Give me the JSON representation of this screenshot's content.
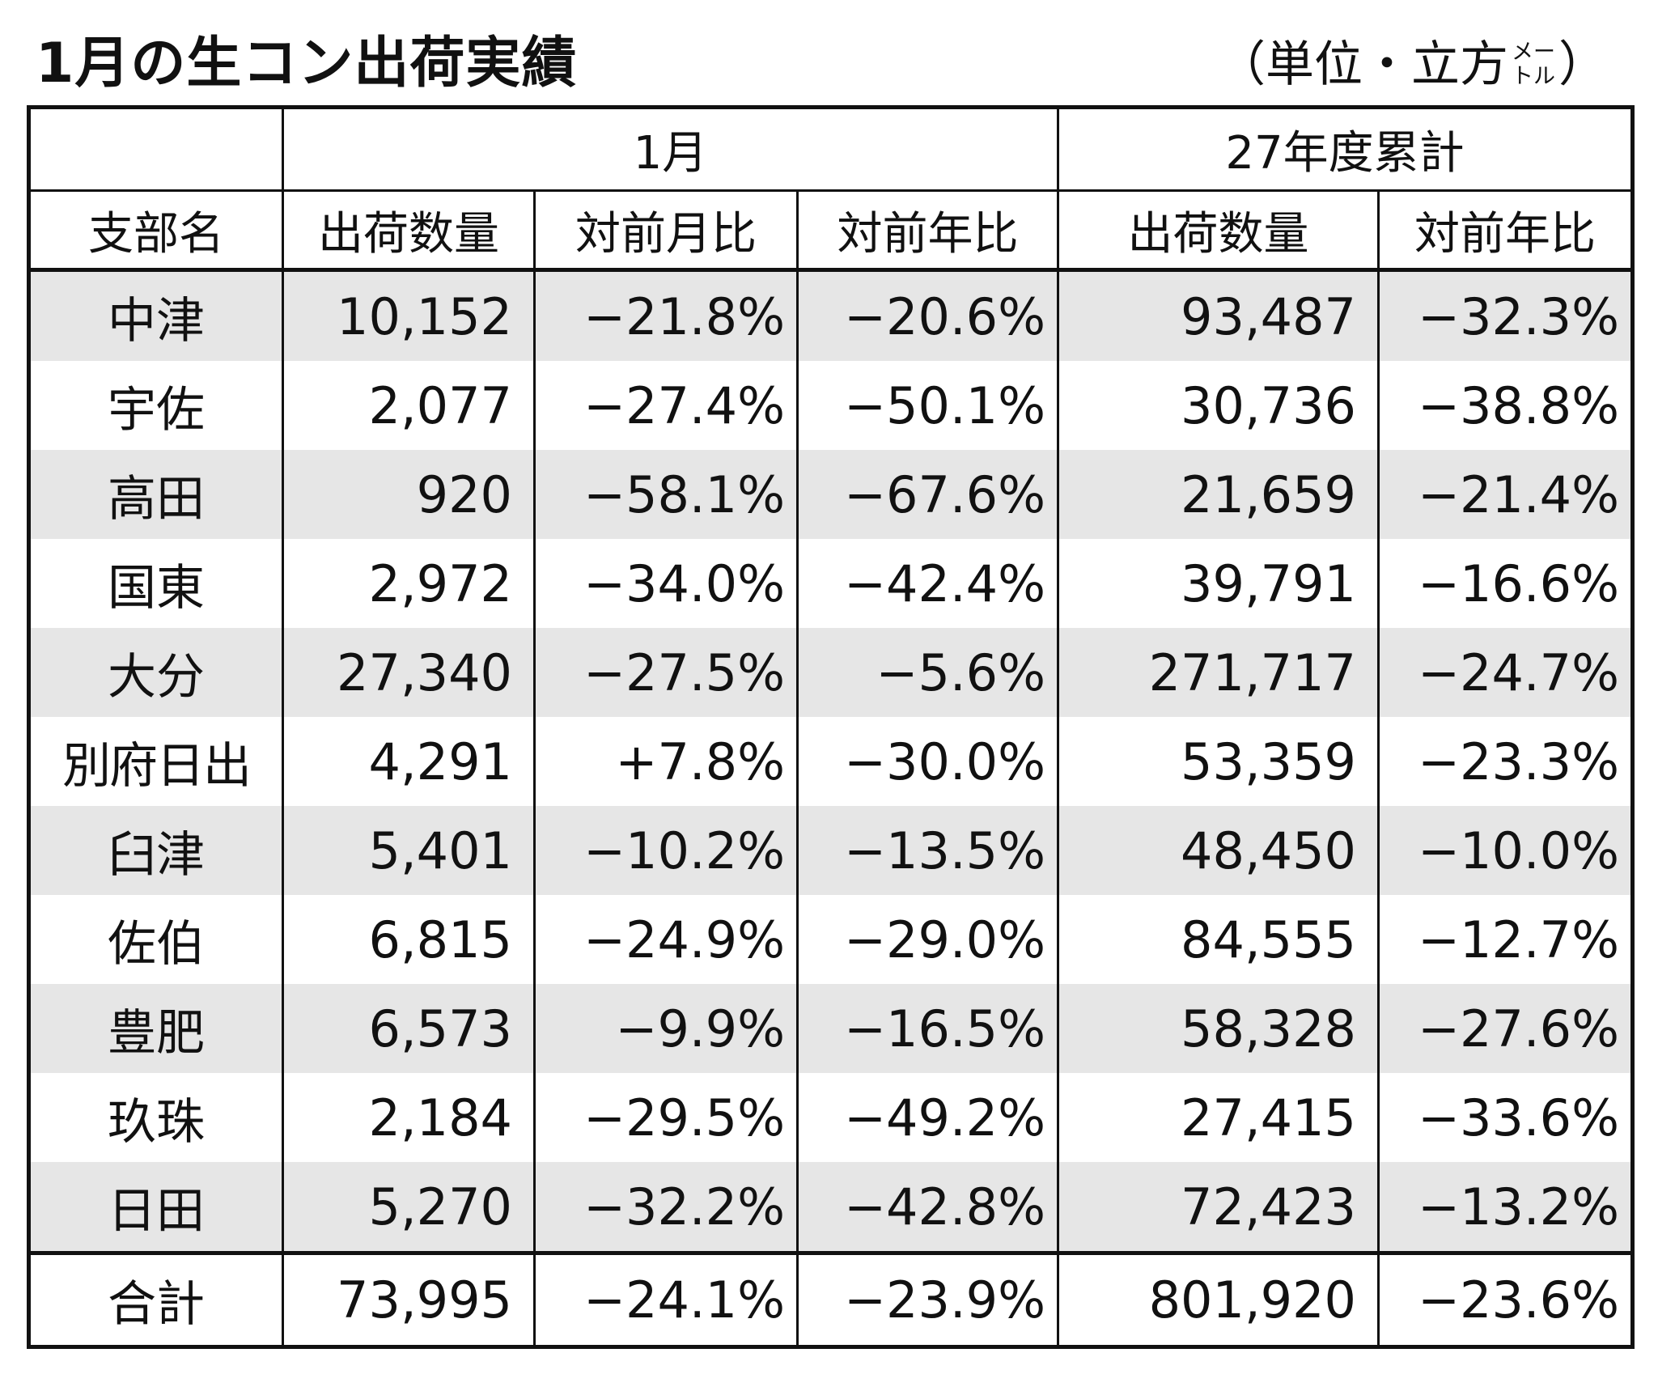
{
  "title": "1月の生コン出荷実績",
  "unit": {
    "open": "（",
    "prefix": "単位・立方",
    "stack_top": "メー",
    "stack_bottom": "トル",
    "close": "）"
  },
  "header": {
    "group_month": "1月",
    "group_cumulative": "27年度累計",
    "col_branch": "支部名",
    "col_month_qty": "出荷数量",
    "col_month_mom": "対前月比",
    "col_month_yoy": "対前年比",
    "col_cum_qty": "出荷数量",
    "col_cum_yoy": "対前年比"
  },
  "rows": [
    {
      "branch": "中津",
      "qty": "10,152",
      "mom": "−21.8%",
      "yoy": "−20.6%",
      "cum_qty": "93,487",
      "cum_yoy": "−32.3%"
    },
    {
      "branch": "宇佐",
      "qty": "2,077",
      "mom": "−27.4%",
      "yoy": "−50.1%",
      "cum_qty": "30,736",
      "cum_yoy": "−38.8%"
    },
    {
      "branch": "高田",
      "qty": "920",
      "mom": "−58.1%",
      "yoy": "−67.6%",
      "cum_qty": "21,659",
      "cum_yoy": "−21.4%"
    },
    {
      "branch": "国東",
      "qty": "2,972",
      "mom": "−34.0%",
      "yoy": "−42.4%",
      "cum_qty": "39,791",
      "cum_yoy": "−16.6%"
    },
    {
      "branch": "大分",
      "qty": "27,340",
      "mom": "−27.5%",
      "yoy": "−5.6%",
      "cum_qty": "271,717",
      "cum_yoy": "−24.7%"
    },
    {
      "branch": "別府日出",
      "qty": "4,291",
      "mom": "+7.8%",
      "yoy": "−30.0%",
      "cum_qty": "53,359",
      "cum_yoy": "−23.3%"
    },
    {
      "branch": "臼津",
      "qty": "5,401",
      "mom": "−10.2%",
      "yoy": "−13.5%",
      "cum_qty": "48,450",
      "cum_yoy": "−10.0%"
    },
    {
      "branch": "佐伯",
      "qty": "6,815",
      "mom": "−24.9%",
      "yoy": "−29.0%",
      "cum_qty": "84,555",
      "cum_yoy": "−12.7%"
    },
    {
      "branch": "豊肥",
      "qty": "6,573",
      "mom": "−9.9%",
      "yoy": "−16.5%",
      "cum_qty": "58,328",
      "cum_yoy": "−27.6%"
    },
    {
      "branch": "玖珠",
      "qty": "2,184",
      "mom": "−29.5%",
      "yoy": "−49.2%",
      "cum_qty": "27,415",
      "cum_yoy": "−33.6%"
    },
    {
      "branch": "日田",
      "qty": "5,270",
      "mom": "−32.2%",
      "yoy": "−42.8%",
      "cum_qty": "72,423",
      "cum_yoy": "−13.2%"
    }
  ],
  "total": {
    "branch": "合計",
    "qty": "73,995",
    "mom": "−24.1%",
    "yoy": "−23.9%",
    "cum_qty": "801,920",
    "cum_yoy": "−23.6%"
  },
  "colors": {
    "shade": "#e6e6e6",
    "border": "#111111"
  }
}
